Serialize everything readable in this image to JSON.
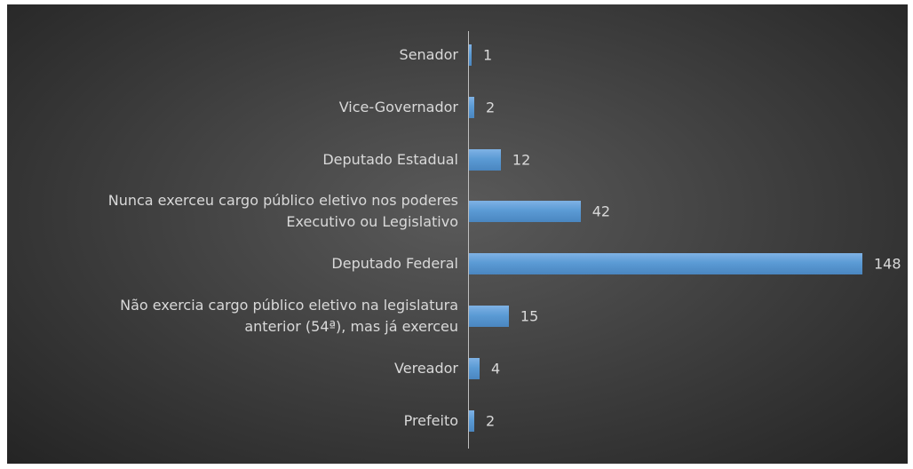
{
  "chart_data": {
    "type": "bar",
    "orientation": "horizontal",
    "color": "#5b9bd5",
    "categories": [
      "Senador",
      "Vice-Governador",
      "Deputado Estadual",
      "Nunca exerceu cargo público eletivo nos poderes\nExecutivo ou Legislativo",
      "Deputado Federal",
      "Não exercia cargo público eletivo na legislatura\nanterior (54ª), mas já exerceu",
      "Vereador",
      "Prefeito"
    ],
    "values": [
      1,
      2,
      12,
      42,
      148,
      15,
      4,
      2
    ]
  }
}
